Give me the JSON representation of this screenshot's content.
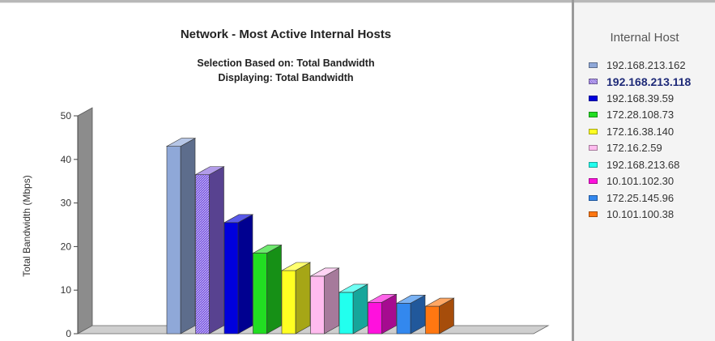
{
  "chart_data": {
    "type": "bar",
    "title": "Network - Most Active Internal Hosts",
    "subtitle_lines": [
      "Selection Based on: Total Bandwidth",
      "Displaying: Total Bandwidth"
    ],
    "xlabel": "",
    "ylabel": "Total Bandwidth (Mbps)",
    "ylim": [
      0,
      50
    ],
    "yticks": [
      "0",
      "10",
      "20",
      "30",
      "40",
      "50"
    ],
    "categories": [
      "192.168.213.162",
      "192.168.213.118",
      "192.168.39.59",
      "172.28.108.73",
      "172.16.38.140",
      "172.16.2.59",
      "192.168.213.68",
      "10.101.102.30",
      "172.25.145.96",
      "10.101.100.38"
    ],
    "values": [
      43,
      36.5,
      25.5,
      18.5,
      14.5,
      13.2,
      9.5,
      7.2,
      7.0,
      6.3
    ],
    "colors": [
      "#8fa8d8",
      "#8866dd",
      "#0000dd",
      "#22dd22",
      "#ffff22",
      "#ffbbee",
      "#22ffee",
      "#ff11dd",
      "#3388ee",
      "#ff7711"
    ],
    "legend_title": "Internal Host",
    "legend_position": "right",
    "grid": false,
    "selected_index": 1
  }
}
